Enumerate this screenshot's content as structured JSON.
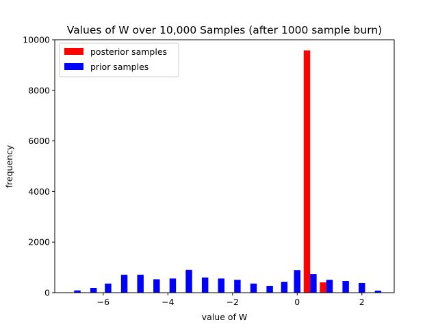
{
  "chart_data": {
    "type": "bar",
    "title": "Values of W over 10,000 Samples (after 1000 sample burn)",
    "xlabel": "value of W",
    "ylabel": "frequency",
    "xlim": [
      -7.5,
      3.0
    ],
    "ylim": [
      0,
      10000
    ],
    "xticks": [
      -6,
      -4,
      -2,
      0,
      2
    ],
    "xtick_labels": [
      "−6",
      "−4",
      "−2",
      "0",
      "2"
    ],
    "yticks": [
      0,
      2000,
      4000,
      6000,
      8000,
      10000
    ],
    "ytick_labels": [
      "0",
      "2000",
      "4000",
      "6000",
      "8000",
      "10000"
    ],
    "grid": false,
    "legend_position": "upper-left",
    "bar_width": 0.2,
    "series": [
      {
        "name": "posterior samples",
        "color": "#ff0000",
        "x": [
          0.3,
          0.8
        ],
        "values": [
          9580,
          410
        ]
      },
      {
        "name": "prior samples",
        "color": "#0000ff",
        "x": [
          -6.8,
          -6.3,
          -5.85,
          -5.35,
          -4.85,
          -4.35,
          -3.85,
          -3.35,
          -2.85,
          -2.35,
          -1.85,
          -1.35,
          -0.85,
          -0.4,
          0.0,
          0.5,
          1.0,
          1.5,
          2.0,
          2.5
        ],
        "values": [
          90,
          190,
          360,
          710,
          710,
          530,
          560,
          900,
          600,
          560,
          510,
          360,
          270,
          430,
          890,
          730,
          510,
          460,
          380,
          80
        ]
      }
    ]
  }
}
